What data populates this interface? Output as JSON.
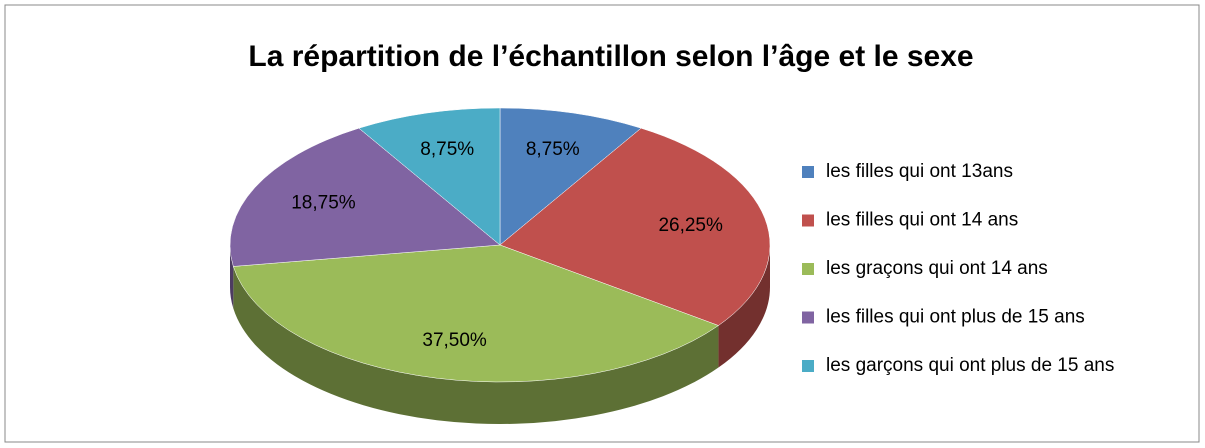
{
  "chart_data": {
    "type": "pie",
    "title": "La répartition de l’échantillon selon l’âge et le sexe",
    "categories": [
      "les filles qui ont 13ans",
      "les filles qui ont 14 ans",
      "les graçons qui ont 14 ans",
      "les filles qui ont plus de 15 ans",
      "les garçons qui ont plus de 15 ans"
    ],
    "values": [
      8.75,
      26.25,
      37.5,
      18.75,
      8.75
    ],
    "value_labels": [
      "8,75%",
      "26,25%",
      "37,50%",
      "18,75%",
      "8,75%"
    ],
    "colors": [
      "#4f81bd",
      "#c0504d",
      "#9bbb59",
      "#8064a2",
      "#4bacc6"
    ],
    "legend": "right"
  }
}
